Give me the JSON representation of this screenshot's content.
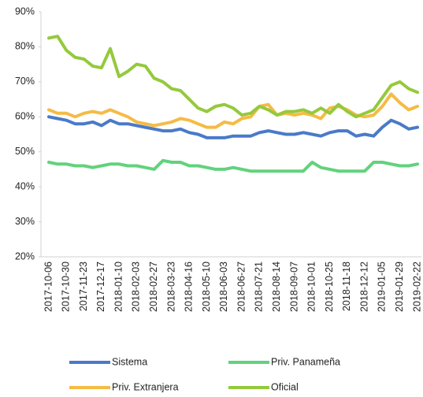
{
  "chart_data": {
    "type": "line",
    "categories": [
      "2017-10-06",
      null,
      "2017-10-30",
      null,
      "2017-11-23",
      null,
      "2017-12-17",
      null,
      "2018-01-10",
      null,
      "2018-02-03",
      null,
      "2018-02-27",
      null,
      "2018-03-23",
      null,
      "2018-04-16",
      null,
      "2018-05-10",
      null,
      "2018-06-03",
      null,
      "2018-06-27",
      null,
      "2018-07-21",
      null,
      "2018-08-14",
      null,
      "2018-09-07",
      null,
      "2018-10-01",
      null,
      "2018-10-25",
      null,
      "2018-11-18",
      null,
      "2018-12-12",
      null,
      "2019-01-05",
      null,
      "2019-01-29",
      null,
      "2019-02-22"
    ],
    "series": [
      {
        "name": "Sistema",
        "color": "#4a7ac8",
        "values": [
          60,
          59.5,
          59,
          58,
          58,
          58.5,
          57.5,
          59,
          58,
          58,
          57.5,
          57,
          56.5,
          56,
          56,
          56.5,
          55.5,
          55,
          54,
          54,
          54,
          54.5,
          54.5,
          54.5,
          55.5,
          56,
          55.5,
          55,
          55,
          55.5,
          55,
          54.5,
          55.5,
          56,
          56,
          54.5,
          55,
          54.5,
          57,
          59,
          58,
          56.5,
          57
        ]
      },
      {
        "name": "Priv. Panameña",
        "color": "#62d27d",
        "values": [
          47,
          46.5,
          46.5,
          46,
          46,
          45.5,
          46,
          46.5,
          46.5,
          46,
          46,
          45.5,
          45,
          47.5,
          47,
          47,
          46,
          46,
          45.5,
          45,
          45,
          45.5,
          45,
          44.5,
          44.5,
          44.5,
          44.5,
          44.5,
          44.5,
          44.5,
          47,
          45.5,
          45,
          44.5,
          44.5,
          44.5,
          44.5,
          47,
          47,
          46.5,
          46,
          46,
          46.5
        ]
      },
      {
        "name": "Priv. Extranjera",
        "color": "#f5bb45",
        "values": [
          62,
          61,
          61,
          60,
          61,
          61.5,
          61,
          62,
          61,
          60,
          58.5,
          58,
          57.5,
          58,
          58.5,
          59.5,
          59,
          58,
          57,
          57,
          58.5,
          58,
          59.5,
          60,
          63,
          63.5,
          60.5,
          61,
          60.5,
          61,
          60.5,
          59.5,
          62.5,
          63,
          62,
          60.5,
          60,
          60.5,
          63,
          66.5,
          64,
          62,
          63
        ]
      },
      {
        "name": "Oficial",
        "color": "#95c93d",
        "values": [
          82.5,
          83,
          79,
          77,
          76.5,
          74.5,
          74,
          79.5,
          71.5,
          73,
          75,
          74.5,
          71,
          70,
          68,
          67.5,
          65,
          62.5,
          61.5,
          63,
          63.5,
          62.5,
          60.5,
          61,
          63,
          62,
          60.5,
          61.5,
          61.5,
          62,
          61,
          62.5,
          61,
          63.5,
          61.5,
          60,
          61,
          62,
          65.5,
          69,
          70,
          68,
          67
        ]
      }
    ],
    "ylim": [
      20,
      90
    ],
    "yticks": [
      {
        "value": 20,
        "label": "20%"
      },
      {
        "value": 30,
        "label": "30%"
      },
      {
        "value": 40,
        "label": "40%"
      },
      {
        "value": 50,
        "label": "50%"
      },
      {
        "value": 60,
        "label": "60%"
      },
      {
        "value": 70,
        "label": "70%"
      },
      {
        "value": 80,
        "label": "80%"
      },
      {
        "value": 90,
        "label": "90%"
      }
    ],
    "grid": false,
    "legend": "bottom"
  }
}
